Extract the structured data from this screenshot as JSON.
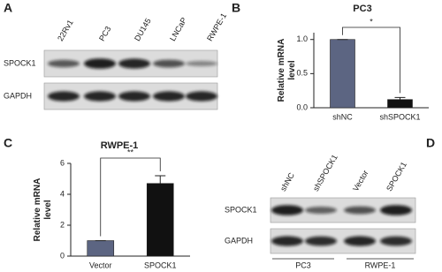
{
  "panel_labels": [
    "A",
    "B",
    "C",
    "D"
  ],
  "blot_a": {
    "lanes": [
      "22Rv1",
      "PC3",
      "DU145",
      "LNCaP",
      "RWPE-1"
    ],
    "rows": [
      "SPOCK1",
      "GAPDH"
    ]
  },
  "blot_d": {
    "lanes": [
      "shNC",
      "shSPOCK1",
      "Vector",
      "SPOCK1"
    ],
    "rows": [
      "SPOCK1",
      "GAPDH"
    ],
    "groups": [
      "PC3",
      "RWPE-1"
    ]
  },
  "chart_data": [
    {
      "type": "bar",
      "title": "PC3",
      "y_label": [
        "Relative mRNA",
        "level"
      ],
      "categories": [
        "shNC",
        "shSPOCK1"
      ],
      "values": [
        1.0,
        0.12
      ],
      "errors": [
        0,
        0.03
      ],
      "colors": [
        "#5c6582",
        "#111111"
      ],
      "ylim": [
        0,
        1.1
      ],
      "yticks": [
        {
          "value": 0,
          "label": "0.0"
        },
        {
          "value": 0.5,
          "label": "0.5"
        },
        {
          "value": 1,
          "label": "1.0"
        }
      ],
      "significance": "*"
    },
    {
      "type": "bar",
      "title": "RWPE-1",
      "y_label": [
        "Relative mRNA",
        "level"
      ],
      "categories": [
        "Vector",
        "SPOCK1"
      ],
      "values": [
        1,
        4.7
      ],
      "errors": [
        0,
        0.5
      ],
      "colors": [
        "#5c6582",
        "#111111"
      ],
      "ylim": [
        0,
        6
      ],
      "yticks": [
        0,
        2,
        4,
        6
      ],
      "significance": "**"
    }
  ]
}
